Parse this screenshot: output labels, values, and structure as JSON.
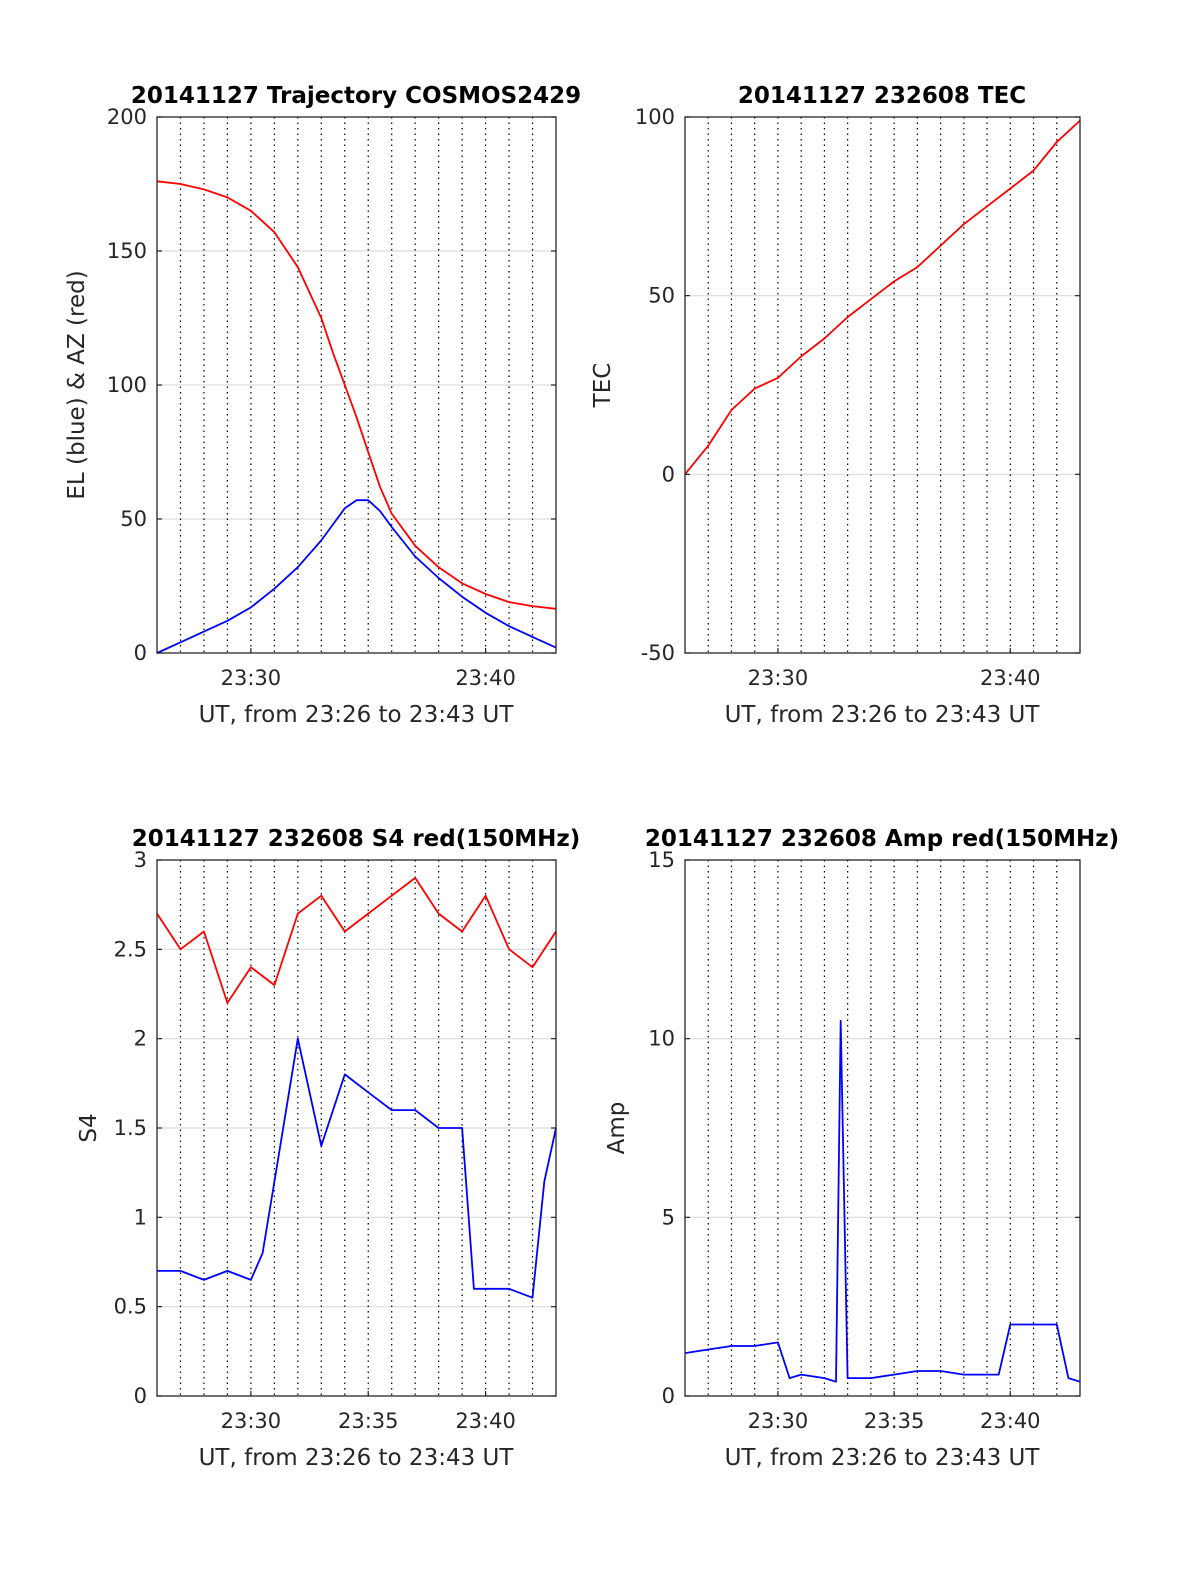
{
  "chart_data": [
    {
      "type": "line",
      "title": "20141127 Trajectory COSMOS2429",
      "xlabel": "UT, from 23:26 to 23:43 UT",
      "ylabel": "EL (blue) & AZ (red)",
      "xlim": [
        26,
        43
      ],
      "ylim": [
        0,
        200
      ],
      "xticks": [
        30,
        40
      ],
      "xtick_labels": [
        "23:30",
        "23:40"
      ],
      "yticks": [
        0,
        50,
        100,
        150,
        200
      ],
      "ytick_labels": [
        "0",
        "50",
        "100",
        "150",
        "200"
      ],
      "x_gridlines": [
        27,
        28,
        29,
        30,
        31,
        32,
        33,
        34,
        35,
        36,
        37,
        38,
        39,
        40,
        41,
        42
      ],
      "grid": true,
      "series": [
        {
          "color": "#ff0000",
          "x": [
            26,
            27,
            28,
            29,
            30,
            31,
            32,
            33,
            33.5,
            34,
            34.5,
            35,
            35.5,
            36,
            37,
            38,
            39,
            40,
            41,
            42,
            43
          ],
          "values": [
            176,
            175,
            173,
            170,
            165,
            157,
            144,
            125,
            112,
            100,
            88,
            75,
            62,
            52,
            40,
            32,
            26,
            22,
            19,
            17.5,
            16.5
          ]
        },
        {
          "color": "#0000ff",
          "x": [
            26,
            27,
            28,
            29,
            30,
            31,
            32,
            33,
            33.5,
            34,
            34.5,
            35,
            35.5,
            36,
            37,
            38,
            39,
            40,
            41,
            42,
            43
          ],
          "values": [
            0,
            4,
            8,
            12,
            17,
            24,
            32,
            42,
            48,
            54,
            57,
            57,
            53,
            47,
            36,
            28,
            21,
            15,
            10,
            6,
            2
          ]
        }
      ]
    },
    {
      "type": "line",
      "title": "20141127 232608 TEC",
      "xlabel": "UT, from 23:26 to 23:43 UT",
      "ylabel": "TEC",
      "xlim": [
        26,
        43
      ],
      "ylim": [
        -50,
        100
      ],
      "xticks": [
        30,
        40
      ],
      "xtick_labels": [
        "23:30",
        "23:40"
      ],
      "yticks": [
        -50,
        0,
        50,
        100
      ],
      "ytick_labels": [
        "-50",
        "0",
        "50",
        "100"
      ],
      "x_gridlines": [
        27,
        28,
        29,
        30,
        31,
        32,
        33,
        34,
        35,
        36,
        37,
        38,
        39,
        40,
        41,
        42
      ],
      "grid": true,
      "series": [
        {
          "color": "#ff0000",
          "x": [
            26,
            27,
            28,
            29,
            30,
            31,
            32,
            33,
            34,
            35,
            36,
            37,
            38,
            39,
            40,
            41,
            42,
            42.5,
            43
          ],
          "values": [
            0,
            8,
            18,
            24,
            27,
            33,
            38,
            44,
            49,
            54,
            58,
            64,
            70,
            75,
            80,
            85,
            93,
            96,
            99
          ]
        }
      ]
    },
    {
      "type": "line",
      "title": "20141127 232608 S4 red(150MHz)",
      "xlabel": "UT, from 23:26 to 23:43 UT",
      "ylabel": "S4",
      "xlim": [
        26,
        43
      ],
      "ylim": [
        0,
        3
      ],
      "xticks": [
        30,
        35,
        40
      ],
      "xtick_labels": [
        "23:30",
        "23:35",
        "23:40"
      ],
      "yticks": [
        0,
        0.5,
        1,
        1.5,
        2,
        2.5,
        3
      ],
      "ytick_labels": [
        "0",
        "0.5",
        "1",
        "1.5",
        "2",
        "2.5",
        "3"
      ],
      "x_gridlines": [
        27,
        28,
        29,
        30,
        31,
        32,
        33,
        34,
        35,
        36,
        37,
        38,
        39,
        40,
        41,
        42
      ],
      "grid": true,
      "series": [
        {
          "color": "#ff0000",
          "x": [
            26,
            27,
            28,
            29,
            30,
            31,
            32,
            33,
            34,
            35,
            36,
            37,
            38,
            39,
            40,
            41,
            42,
            43
          ],
          "values": [
            2.7,
            2.5,
            2.6,
            2.2,
            2.4,
            2.3,
            2.7,
            2.8,
            2.6,
            2.7,
            2.8,
            2.9,
            2.7,
            2.6,
            2.8,
            2.5,
            2.4,
            2.6
          ]
        },
        {
          "color": "#0000ff",
          "x": [
            26,
            27,
            28,
            29,
            30,
            30.5,
            31,
            32,
            33,
            34,
            35,
            36,
            37,
            38,
            39,
            39.5,
            40,
            41,
            42,
            42.5,
            43
          ],
          "values": [
            0.7,
            0.7,
            0.65,
            0.7,
            0.65,
            0.8,
            1.2,
            2.0,
            1.4,
            1.8,
            1.7,
            1.6,
            1.6,
            1.5,
            1.5,
            0.6,
            0.6,
            0.6,
            0.55,
            1.2,
            1.5
          ]
        }
      ]
    },
    {
      "type": "line",
      "title": "20141127 232608 Amp red(150MHz)",
      "xlabel": "UT, from 23:26 to 23:43 UT",
      "ylabel": "Amp",
      "xlim": [
        26,
        43
      ],
      "ylim": [
        0,
        15
      ],
      "xticks": [
        30,
        35,
        40
      ],
      "xtick_labels": [
        "23:30",
        "23:35",
        "23:40"
      ],
      "yticks": [
        0,
        5,
        10,
        15
      ],
      "ytick_labels": [
        "0",
        "5",
        "10",
        "15"
      ],
      "x_gridlines": [
        27,
        28,
        29,
        30,
        31,
        32,
        33,
        34,
        35,
        36,
        37,
        38,
        39,
        40,
        41,
        42
      ],
      "grid": true,
      "series": [
        {
          "color": "#0000ff",
          "x": [
            26,
            27,
            28,
            29,
            30,
            30.5,
            31,
            32,
            32.5,
            32.7,
            33,
            34,
            35,
            36,
            37,
            38,
            39,
            39.5,
            40,
            41,
            42,
            42.5,
            43
          ],
          "values": [
            1.2,
            1.3,
            1.4,
            1.4,
            1.5,
            0.5,
            0.6,
            0.5,
            0.4,
            10.5,
            0.5,
            0.5,
            0.6,
            0.7,
            0.7,
            0.6,
            0.6,
            0.6,
            2.0,
            2.0,
            2.0,
            0.5,
            0.4
          ]
        }
      ]
    }
  ]
}
